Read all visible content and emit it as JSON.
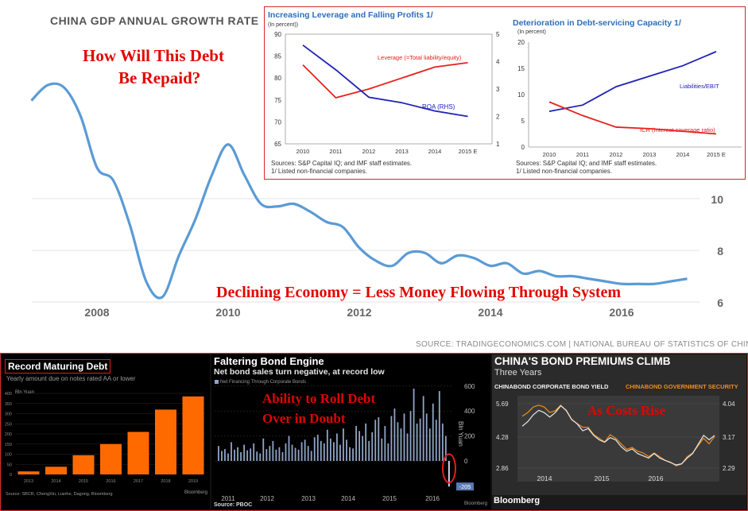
{
  "main": {
    "title": "CHINA GDP ANNUAL GROWTH RATE",
    "source": "SOURCE: TRADINGECONOMICS.COM | NATIONAL BUREAU OF STATISTICS OF CHINA",
    "annotation_top_line1": "How Will This Debt",
    "annotation_top_line2": "Be Repaid?",
    "annotation_bottom": "Declining Economy = Less Money Flowing Through System",
    "line_color": "#5b9bd5"
  },
  "inset_left": {
    "title": "Increasing Leverage and Falling Profits 1/",
    "unit": "(In percent))",
    "source_line1": "Sources: S&P Capital IQ; and IMF staff estimates.",
    "source_line2": "1/ Listed non-financial companies.",
    "leverage_label": "Leverage (=Total liability/equity)",
    "roa_label": "ROA (RHS)"
  },
  "inset_right": {
    "title": "Deterioration in Debt-servicing Capacity 1/",
    "unit": "(In percent)",
    "source_line1": "Sources: S&P Capital IQ; and IMF staff estimates.",
    "source_line2": "1/ Listed non-financial companies.",
    "liab_label": "Liabilities/EBIT",
    "icr_label": "ICR (Interest coverage ratio)"
  },
  "panel_a": {
    "title": "Record Maturing Debt",
    "subtitle": "Yearly amount due on notes rated AA or lower",
    "unit": "Bln Yuan",
    "source": "Source: SBCR, ChengXin, Lianhe, Dagong, Bloomberg",
    "brand": "Bloomberg",
    "bar_color": "#ff6a00"
  },
  "panel_b": {
    "title": "Faltering Bond Engine",
    "subtitle": "Net bond sales turn negative, at record low",
    "legend": "Net Financing Through Corporate Bonds",
    "annotation_line1": "Ability to Roll Debt",
    "annotation_line2": "Over in Doubt",
    "ylabel": "Bln Yuan",
    "last_value_label": "-205",
    "source": "Source: PBOC",
    "brand": "Bloomberg"
  },
  "panel_c": {
    "title": "CHINA'S BOND PREMIUMS CLIMB",
    "subtitle": "Three Years",
    "legend_a": "CHINABOND CORPORATE BOND YIELD",
    "legend_b": "CHINABOND GOVERNMENT SECURITY",
    "annotation": "As Costs Rise",
    "brand": "Bloomberg"
  },
  "chart_data": [
    {
      "id": "gdp",
      "type": "line",
      "title": "CHINA GDP ANNUAL GROWTH RATE",
      "x": [
        2007.0,
        2007.25,
        2007.5,
        2007.75,
        2008.0,
        2008.25,
        2008.5,
        2008.75,
        2009.0,
        2009.25,
        2009.5,
        2009.75,
        2010.0,
        2010.25,
        2010.5,
        2010.75,
        2011.0,
        2011.25,
        2011.5,
        2011.75,
        2012.0,
        2012.25,
        2012.5,
        2012.75,
        2013.0,
        2013.25,
        2013.5,
        2013.75,
        2014.0,
        2014.25,
        2014.5,
        2014.75,
        2015.0,
        2015.25,
        2015.5,
        2015.75,
        2016.0,
        2016.25,
        2016.5,
        2016.75,
        2017.0
      ],
      "values": [
        13.8,
        14.4,
        14.3,
        13.2,
        11.2,
        10.7,
        9.0,
        6.8,
        6.2,
        7.8,
        9.2,
        10.9,
        12.1,
        10.9,
        9.8,
        9.7,
        9.8,
        9.5,
        9.1,
        8.9,
        8.1,
        7.6,
        7.4,
        7.9,
        7.9,
        7.5,
        7.8,
        7.7,
        7.4,
        7.5,
        7.1,
        7.2,
        7.0,
        7.0,
        6.9,
        6.8,
        6.7,
        6.7,
        6.7,
        6.8,
        6.9
      ],
      "xticks": [
        "2008",
        "2010",
        "2012",
        "2014",
        "2016"
      ],
      "yticks": [
        "6",
        "8",
        "10"
      ]
    },
    {
      "id": "leverage_roa",
      "type": "line",
      "title": "Increasing Leverage and Falling Profits 1/",
      "categories": [
        "2010",
        "2011",
        "2012",
        "2013",
        "2014",
        "2015 E"
      ],
      "series": [
        {
          "name": "Leverage (=Total liability/equity)",
          "values": [
            83,
            75.5,
            77.5,
            80,
            82.5,
            83.5
          ],
          "color": "#e8201c",
          "axis": "left"
        },
        {
          "name": "ROA (RHS)",
          "values": [
            4.6,
            3.7,
            2.7,
            2.5,
            2.2,
            2.0
          ],
          "color": "#1f22b4",
          "axis": "right"
        }
      ],
      "ylim_left": [
        65,
        90
      ],
      "ylim_right": [
        1,
        5
      ],
      "yticks_left": [
        "65",
        "70",
        "75",
        "80",
        "85",
        "90"
      ],
      "yticks_right": [
        "1",
        "2",
        "3",
        "4",
        "5"
      ]
    },
    {
      "id": "debt_service",
      "type": "line",
      "title": "Deterioration in Debt-servicing Capacity 1/",
      "categories": [
        "2010",
        "2011",
        "2012",
        "2013",
        "2014",
        "2015 E"
      ],
      "series": [
        {
          "name": "Liabilities/EBIT",
          "values": [
            6.8,
            8,
            11.5,
            13.5,
            15.5,
            18.2
          ],
          "color": "#1f22b4"
        },
        {
          "name": "ICR (Interest coverage ratio)",
          "values": [
            8.6,
            6,
            3.8,
            3.5,
            3,
            2.5
          ],
          "color": "#e8201c"
        }
      ],
      "ylim": [
        0,
        20
      ],
      "yticks": [
        "0",
        "5",
        "10",
        "15",
        "20"
      ]
    },
    {
      "id": "maturing_debt",
      "type": "bar",
      "title": "Record Maturing Debt",
      "categories": [
        "2013",
        "2014",
        "2015",
        "2016",
        "2017",
        "2018",
        "2019"
      ],
      "values": [
        15,
        38,
        95,
        150,
        210,
        320,
        385
      ],
      "ylim": [
        0,
        400
      ],
      "yticks": [
        "0",
        "50",
        "100",
        "150",
        "200",
        "250",
        "300",
        "350",
        "400"
      ]
    },
    {
      "id": "bond_engine",
      "type": "bar",
      "title": "Faltering Bond Engine",
      "values": [
        120,
        80,
        95,
        60,
        150,
        90,
        110,
        70,
        130,
        85,
        100,
        140,
        75,
        60,
        180,
        95,
        120,
        160,
        90,
        110,
        70,
        140,
        200,
        130,
        105,
        90,
        150,
        170,
        120,
        80,
        190,
        210,
        160,
        140,
        250,
        180,
        150,
        220,
        130,
        260,
        170,
        110,
        100,
        280,
        240,
        200,
        300,
        160,
        230,
        330,
        350,
        180,
        280,
        140,
        360,
        420,
        310,
        260,
        380,
        220,
        400,
        580,
        300,
        340,
        520,
        380,
        260,
        460,
        330,
        560,
        300,
        200,
        -205
      ],
      "xticks": [
        "2011",
        "2012",
        "2013",
        "2014",
        "2015",
        "2016"
      ],
      "ylim": [
        -250,
        700
      ],
      "yticks": [
        "600",
        "400",
        "200",
        "0"
      ]
    },
    {
      "id": "bond_premiums",
      "type": "line",
      "title": "CHINA'S BOND PREMIUMS CLIMB",
      "series": [
        {
          "name": "CHINABOND CORPORATE BOND YIELD",
          "color": "#e8e8e8",
          "values": [
            4.7,
            4.9,
            5.2,
            5.4,
            5.3,
            5.1,
            5.3,
            5.6,
            5.4,
            5.0,
            4.8,
            4.5,
            4.6,
            4.3,
            4.1,
            4.0,
            4.2,
            4.1,
            3.8,
            3.6,
            3.7,
            3.5,
            3.4,
            3.3,
            3.5,
            3.3,
            3.2,
            3.1,
            3.0,
            3.05,
            3.3,
            3.5,
            3.9,
            4.3,
            4.1,
            4.3
          ]
        },
        {
          "name": "CHINABOND GOVERNMENT SECURITY",
          "color": "#f08c1e",
          "values": [
            3.7,
            3.8,
            3.95,
            4.0,
            3.95,
            3.8,
            3.85,
            4.0,
            3.85,
            3.6,
            3.5,
            3.4,
            3.4,
            3.2,
            3.1,
            3.0,
            3.2,
            3.1,
            2.95,
            2.8,
            2.85,
            2.75,
            2.7,
            2.6,
            2.7,
            2.6,
            2.5,
            2.45,
            2.35,
            2.4,
            2.6,
            2.7,
            2.9,
            3.1,
            2.95,
            3.15
          ]
        }
      ],
      "xticks": [
        "2014",
        "2015",
        "2016"
      ],
      "yticks_left": [
        "5.69",
        "4.28",
        "2.86"
      ],
      "yticks_right": [
        "4.04",
        "3.17",
        "2.29"
      ]
    }
  ]
}
